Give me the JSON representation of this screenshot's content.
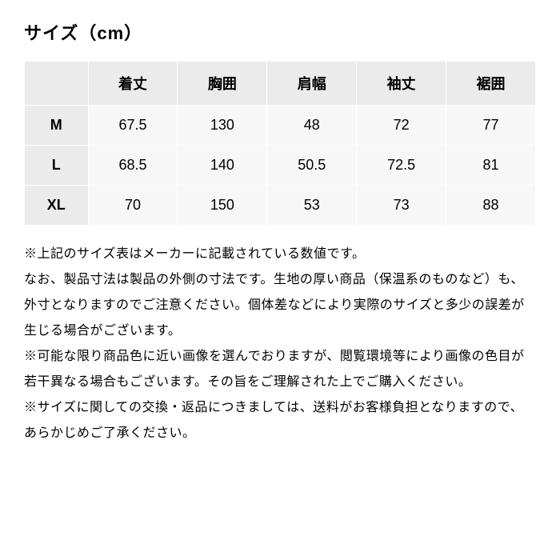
{
  "title": "サイズ（cm）",
  "table": {
    "columns": [
      "着丈",
      "胸囲",
      "肩幅",
      "袖丈",
      "裾囲"
    ],
    "rows": [
      {
        "size": "M",
        "values": [
          "67.5",
          "130",
          "48",
          "72",
          "77"
        ]
      },
      {
        "size": "L",
        "values": [
          "68.5",
          "140",
          "50.5",
          "72.5",
          "81"
        ]
      },
      {
        "size": "XL",
        "values": [
          "70",
          "150",
          "53",
          "73",
          "88"
        ]
      }
    ],
    "header_bg": "#ebebeb",
    "cell_bg": "#f7f7f7",
    "border_color": "#ffffff",
    "font_size": 18
  },
  "notes": {
    "p1": "※上記のサイズ表はメーカーに記載されている数値です。",
    "p2": "なお、製品寸法は製品の外側の寸法です。生地の厚い商品（保温系のものなど）も、外寸となりますのでご注意ください。個体差などにより実際のサイズと多少の誤差が生じる場合がございます。",
    "p3": "※可能な限り商品色に近い画像を選んでおりますが、閲覧環境等により画像の色目が若干異なる場合もございます。その旨をご理解された上でご購入ください。",
    "p4": "※サイズに関しての交換・返品につきましては、送料がお客様負担となりますので、あらかじめご了承ください。"
  }
}
